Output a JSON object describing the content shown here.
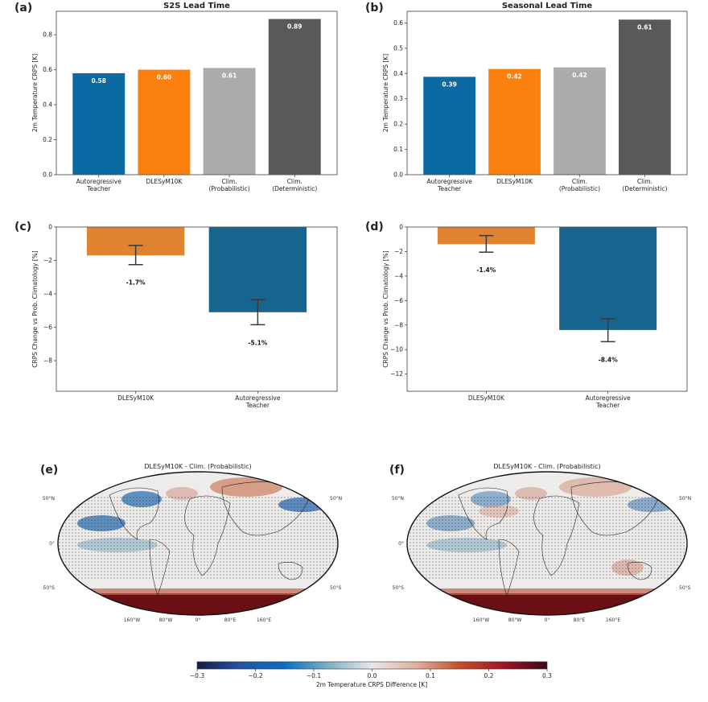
{
  "chart_data": [
    {
      "id": "a",
      "type": "bar",
      "panel_label": "(a)",
      "title": "S2S Lead Time",
      "ylabel": "2m Temperature CRPS [K]",
      "categories": [
        [
          "Autoregressive",
          "Teacher"
        ],
        [
          "DLESyM10K"
        ],
        [
          "Clim.",
          "(Probabilistic)"
        ],
        [
          "Clim.",
          "(Deterministic)"
        ]
      ],
      "values": [
        0.58,
        0.6,
        0.61,
        0.89
      ],
      "value_labels": [
        "0.58",
        "0.60",
        "0.61",
        "0.89"
      ],
      "colors": [
        "#0b6aa2",
        "#fb800e",
        "#ababab",
        "#595959"
      ],
      "ylim": [
        0,
        0.934
      ],
      "yticks": [
        0.0,
        0.2,
        0.4,
        0.6,
        0.8
      ],
      "ytick_labels": [
        "0.0",
        "0.2",
        "0.4",
        "0.6",
        "0.8"
      ]
    },
    {
      "id": "b",
      "type": "bar",
      "panel_label": "(b)",
      "title": "Seasonal Lead Time",
      "ylabel": "2m Temperature CRPS [K]",
      "categories": [
        [
          "Autoregressive",
          "Teacher"
        ],
        [
          "DLESyM10K"
        ],
        [
          "Clim.",
          "(Probabilistic)"
        ],
        [
          "Clim.",
          "(Deterministic)"
        ]
      ],
      "values": [
        0.387,
        0.418,
        0.424,
        0.613
      ],
      "value_labels": [
        "0.39",
        "0.42",
        "0.42",
        "0.61"
      ],
      "colors": [
        "#0b6aa2",
        "#fb800e",
        "#ababab",
        "#595959"
      ],
      "ylim": [
        0,
        0.646
      ],
      "yticks": [
        0.0,
        0.1,
        0.2,
        0.3,
        0.4,
        0.5,
        0.6
      ],
      "ytick_labels": [
        "0.0",
        "0.1",
        "0.2",
        "0.3",
        "0.4",
        "0.5",
        "0.6"
      ]
    },
    {
      "id": "c",
      "type": "bar",
      "panel_label": "(c)",
      "title": "",
      "ylabel": "CRPS Change vs Prob. Climatology [%]",
      "categories": [
        [
          "DLESyM10K"
        ],
        [
          "Autoregressive",
          "Teacher"
        ]
      ],
      "values": [
        -1.7,
        -5.1
      ],
      "error_low": [
        -2.25,
        -5.85
      ],
      "error_high": [
        -1.1,
        -4.35
      ],
      "value_labels": [
        "-1.7%",
        "-5.1%"
      ],
      "colors": [
        "#e0832f",
        "#17648f"
      ],
      "ylim": [
        -9.83,
        0
      ],
      "yticks": [
        0,
        -2,
        -4,
        -6,
        -8
      ],
      "ytick_labels": [
        "0",
        "−2",
        "−4",
        "−6",
        "−8"
      ]
    },
    {
      "id": "d",
      "type": "bar",
      "panel_label": "(d)",
      "title": "",
      "ylabel": "CRPS Change vs Prob. Climatology [%]",
      "categories": [
        [
          "DLESyM10K"
        ],
        [
          "Autoregressive",
          "Teacher"
        ]
      ],
      "values": [
        -1.4,
        -8.4
      ],
      "error_low": [
        -2.05,
        -9.35
      ],
      "error_high": [
        -0.7,
        -7.5
      ],
      "value_labels": [
        "-1.4%",
        "-8.4%"
      ],
      "colors": [
        "#e0832f",
        "#17648f"
      ],
      "ylim": [
        -13.4,
        0
      ],
      "yticks": [
        0,
        -2,
        -4,
        -6,
        -8,
        -10,
        -12
      ],
      "ytick_labels": [
        "0",
        "−2",
        "−4",
        "−6",
        "−8",
        "−10",
        "−12"
      ]
    },
    {
      "id": "e",
      "type": "heatmap",
      "panel_label": "(e)",
      "title": "DLESyM10K - Clim. (Probabilistic)",
      "lat_labels": [
        "50°N",
        "0°",
        "50°S"
      ],
      "lon_labels": [
        "160°W",
        "80°W",
        "0°",
        "80°E",
        "160°E"
      ]
    },
    {
      "id": "f",
      "type": "heatmap",
      "panel_label": "(f)",
      "title": "DLESyM10K - Clim. (Probabilistic)",
      "lat_labels": [
        "50°N",
        "0°",
        "50°S"
      ],
      "lon_labels": [
        "160°W",
        "80°W",
        "0°",
        "80°E",
        "160°E"
      ]
    }
  ],
  "colorbar": {
    "label": "2m Temperature CRPS Difference [K]",
    "range": [
      -0.3,
      0.3
    ],
    "ticks": [
      "−0.3",
      "−0.2",
      "−0.1",
      "0.0",
      "0.1",
      "0.2",
      "0.3"
    ],
    "colors": [
      "#171c48",
      "#2653a3",
      "#0a6fbf",
      "#7eb0c3",
      "#e8e8e8",
      "#e0b0a0",
      "#c2502a",
      "#a3132a",
      "#3a0a14"
    ]
  }
}
